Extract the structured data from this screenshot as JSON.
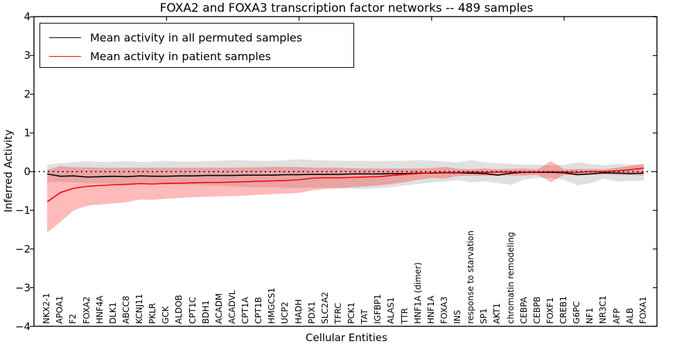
{
  "title": "FOXA2 and FOXA3 transcription factor networks -- 489 samples",
  "axes": {
    "ylabel": "Inferred Activity",
    "xlabel": "Cellular Entities",
    "ytick_labels": [
      "4",
      "3",
      "2",
      "1",
      "0",
      "−1",
      "−2",
      "−3",
      "−4"
    ],
    "ytick_values": [
      4,
      3,
      2,
      1,
      0,
      -1,
      -2,
      -3,
      -4
    ],
    "ylim": [
      -4,
      4
    ],
    "top_tick_values": [
      10,
      20,
      30,
      40
    ]
  },
  "legend": {
    "items": [
      {
        "key": "permuted",
        "label": "Mean activity in all permuted samples",
        "color": "#000000"
      },
      {
        "key": "patient",
        "label": "Mean activity in patient samples",
        "color": "#ff0000"
      }
    ]
  },
  "colors": {
    "permuted_line": "#000000",
    "patient_line": "#ff0000",
    "permuted_band": "rgba(0,0,0,0.12)",
    "patient_band": "rgba(255,0,0,0.27)",
    "zero_line": "#000000",
    "frame": "#000000"
  },
  "chart_data": {
    "type": "line",
    "title": "FOXA2 and FOXA3 transcription factor networks -- 489 samples",
    "xlabel": "Cellular Entities",
    "ylabel": "Inferred Activity",
    "ylim": [
      -4,
      4
    ],
    "grid": false,
    "zero_line": true,
    "legend_position": "upper left",
    "categories": [
      "NKX2-1",
      "APOA1",
      "F2",
      "FOXA2",
      "HNF4A",
      "DLK1",
      "ABCC8",
      "KCNJ11",
      "PKLR",
      "GCK",
      "ALDOB",
      "CPT1C",
      "BDH1",
      "ACADM",
      "ACADVL",
      "CPT1A",
      "CPT1B",
      "HMGCS1",
      "UCP2",
      "HADH",
      "PDX1",
      "SLC2A2",
      "TFRC",
      "PCK1",
      "TAT",
      "IGFBP1",
      "ALAS1",
      "TTR",
      "HNF1A (dimer)",
      "HNF1A",
      "FOXA3",
      "INS",
      "response to starvation",
      "SP1",
      "AKT1",
      "chromatin remodeling",
      "CEBPA",
      "CEBPB",
      "FOXF1",
      "CREB1",
      "G6PC",
      "NF1",
      "NR3C1",
      "AFP",
      "ALB",
      "FOXA1"
    ],
    "series": [
      {
        "key": "permuted",
        "name": "Mean activity in all permuted samples",
        "color": "#000000",
        "band_color": "rgba(0,0,0,0.12)",
        "values": [
          -0.06,
          -0.12,
          -0.11,
          -0.14,
          -0.13,
          -0.12,
          -0.13,
          -0.11,
          -0.12,
          -0.12,
          -0.11,
          -0.11,
          -0.1,
          -0.1,
          -0.1,
          -0.09,
          -0.09,
          -0.09,
          -0.08,
          -0.08,
          -0.07,
          -0.07,
          -0.07,
          -0.06,
          -0.06,
          -0.06,
          -0.05,
          -0.05,
          -0.04,
          -0.04,
          -0.03,
          -0.03,
          -0.04,
          -0.05,
          -0.09,
          -0.04,
          -0.02,
          -0.02,
          -0.02,
          -0.03,
          -0.08,
          -0.06,
          -0.03,
          -0.04,
          -0.05,
          -0.04
        ],
        "band_upper": [
          0.18,
          0.22,
          0.24,
          0.27,
          0.25,
          0.26,
          0.27,
          0.25,
          0.26,
          0.28,
          0.26,
          0.26,
          0.27,
          0.28,
          0.3,
          0.29,
          0.28,
          0.28,
          0.3,
          0.32,
          0.3,
          0.29,
          0.28,
          0.28,
          0.28,
          0.27,
          0.28,
          0.28,
          0.3,
          0.28,
          0.26,
          0.24,
          0.3,
          0.24,
          0.22,
          0.2,
          0.18,
          0.18,
          0.16,
          0.18,
          0.24,
          0.2,
          0.16,
          0.2,
          0.18,
          0.17
        ],
        "band_lower": [
          -0.28,
          -0.26,
          -0.28,
          -0.3,
          -0.3,
          -0.32,
          -0.33,
          -0.3,
          -0.32,
          -0.34,
          -0.33,
          -0.34,
          -0.35,
          -0.36,
          -0.38,
          -0.4,
          -0.4,
          -0.4,
          -0.42,
          -0.42,
          -0.41,
          -0.42,
          -0.43,
          -0.44,
          -0.45,
          -0.43,
          -0.4,
          -0.36,
          -0.32,
          -0.28,
          -0.25,
          -0.22,
          -0.28,
          -0.25,
          -0.3,
          -0.34,
          -0.2,
          -0.16,
          -0.16,
          -0.22,
          -0.35,
          -0.3,
          -0.18,
          -0.26,
          -0.24,
          -0.23
        ]
      },
      {
        "key": "patient",
        "name": "Mean activity in patient samples",
        "color": "#ff0000",
        "band_color": "rgba(255,0,0,0.27)",
        "values": [
          -0.78,
          -0.54,
          -0.43,
          -0.38,
          -0.36,
          -0.34,
          -0.33,
          -0.31,
          -0.32,
          -0.3,
          -0.3,
          -0.29,
          -0.28,
          -0.28,
          -0.27,
          -0.26,
          -0.25,
          -0.24,
          -0.23,
          -0.21,
          -0.17,
          -0.16,
          -0.16,
          -0.15,
          -0.14,
          -0.13,
          -0.1,
          -0.07,
          -0.05,
          -0.03,
          -0.02,
          -0.02,
          -0.01,
          -0.02,
          -0.01,
          -0.01,
          -0.01,
          -0.01,
          0.0,
          -0.01,
          -0.02,
          0.0,
          0.0,
          0.02,
          0.05,
          0.09
        ],
        "band_upper": [
          0.05,
          0.14,
          0.11,
          0.11,
          0.1,
          0.1,
          0.1,
          0.1,
          0.1,
          0.1,
          0.1,
          0.1,
          0.1,
          0.1,
          0.1,
          0.11,
          0.11,
          0.12,
          0.12,
          0.12,
          0.1,
          0.1,
          0.1,
          0.09,
          0.08,
          0.08,
          0.08,
          0.08,
          0.08,
          0.09,
          0.12,
          0.07,
          0.06,
          0.08,
          0.06,
          0.07,
          0.08,
          0.06,
          0.27,
          0.06,
          0.07,
          0.07,
          0.06,
          0.1,
          0.15,
          0.21
        ],
        "band_lower": [
          -1.58,
          -1.3,
          -1.0,
          -0.88,
          -0.85,
          -0.82,
          -0.79,
          -0.72,
          -0.73,
          -0.7,
          -0.68,
          -0.66,
          -0.65,
          -0.64,
          -0.63,
          -0.62,
          -0.6,
          -0.58,
          -0.57,
          -0.55,
          -0.48,
          -0.45,
          -0.43,
          -0.4,
          -0.38,
          -0.36,
          -0.32,
          -0.27,
          -0.21,
          -0.16,
          -0.18,
          -0.11,
          -0.1,
          -0.11,
          -0.1,
          -0.1,
          -0.1,
          -0.08,
          -0.27,
          -0.08,
          -0.09,
          -0.08,
          -0.07,
          -0.08,
          -0.09,
          -0.1
        ]
      }
    ]
  }
}
